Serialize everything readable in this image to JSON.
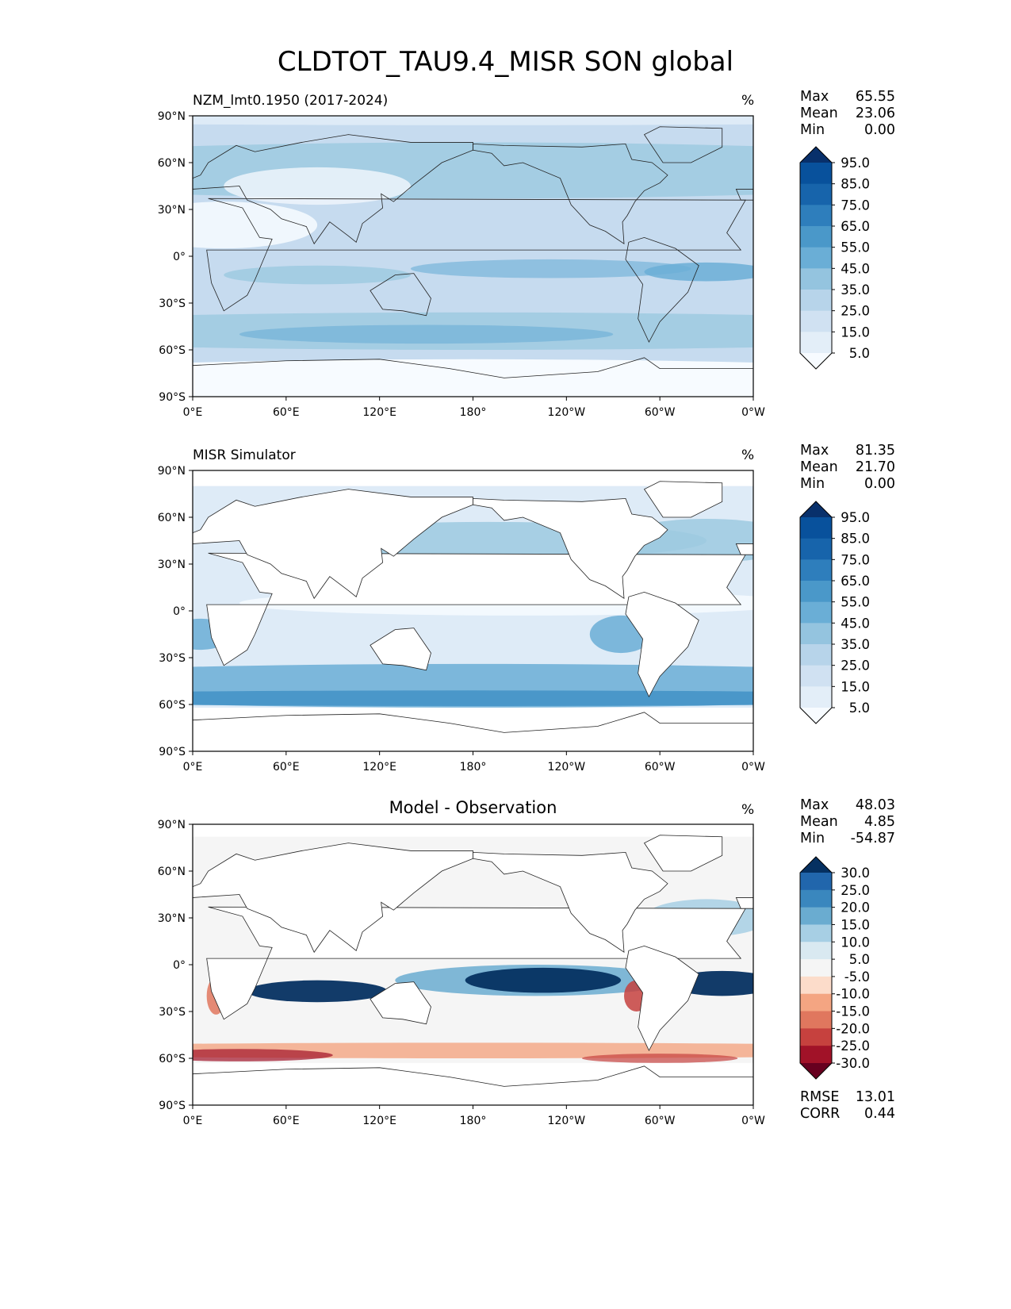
{
  "figure_title": "CLDTOT_TAU9.4_MISR SON global",
  "chart_data": [
    {
      "type": "heatmap",
      "title": "NZM_lmt0.1950 (2017-2024)",
      "units": "%",
      "stats": {
        "max": "65.55",
        "mean": "23.06",
        "min": "0.00"
      },
      "xticks": [
        "0°E",
        "60°E",
        "120°E",
        "180°",
        "120°W",
        "60°W",
        "0°W"
      ],
      "yticks": [
        "90°N",
        "60°N",
        "30°N",
        "0°",
        "30°S",
        "60°S",
        "90°S"
      ],
      "colorbar": {
        "labels": [
          "95.0",
          "85.0",
          "75.0",
          "65.0",
          "55.0",
          "45.0",
          "35.0",
          "25.0",
          "15.0",
          "5.0"
        ],
        "colors": [
          "#08306b",
          "#08519c",
          "#1764ab",
          "#2e7ebc",
          "#4a98c9",
          "#6aaed6",
          "#94c4df",
          "#b7d4ea",
          "#d0e1f2",
          "#e3eef8",
          "#f7fbff"
        ]
      },
      "field": "blues"
    },
    {
      "type": "heatmap",
      "title": "MISR Simulator",
      "units": "%",
      "stats": {
        "max": "81.35",
        "mean": "21.70",
        "min": "0.00"
      },
      "xticks": [
        "0°E",
        "60°E",
        "120°E",
        "180°",
        "120°W",
        "60°W",
        "0°W"
      ],
      "yticks": [
        "90°N",
        "60°N",
        "30°N",
        "0°",
        "30°S",
        "60°S",
        "90°S"
      ],
      "colorbar": {
        "labels": [
          "95.0",
          "85.0",
          "75.0",
          "65.0",
          "55.0",
          "45.0",
          "35.0",
          "25.0",
          "15.0",
          "5.0"
        ],
        "colors": [
          "#08306b",
          "#08519c",
          "#1764ab",
          "#2e7ebc",
          "#4a98c9",
          "#6aaed6",
          "#94c4df",
          "#b7d4ea",
          "#d0e1f2",
          "#e3eef8",
          "#f7fbff"
        ]
      },
      "field": "blues-ocean"
    },
    {
      "type": "heatmap",
      "title": "Model - Observation",
      "units": "%",
      "stats": {
        "max": "48.03",
        "mean": "4.85",
        "min": "-54.87"
      },
      "extra_stats": {
        "rmse": "13.01",
        "corr": "0.44"
      },
      "xticks": [
        "0°E",
        "60°E",
        "120°E",
        "180°",
        "120°W",
        "60°W",
        "0°W"
      ],
      "yticks": [
        "90°N",
        "60°N",
        "30°N",
        "0°",
        "30°S",
        "60°S",
        "90°S"
      ],
      "colorbar": {
        "labels": [
          "30.0",
          "25.0",
          "20.0",
          "15.0",
          "10.0",
          "5.0",
          "-5.0",
          "-10.0",
          "-15.0",
          "-20.0",
          "-25.0",
          "-30.0"
        ],
        "colors": [
          "#053061",
          "#2166ac",
          "#3a87be",
          "#6aacd0",
          "#a7cfe4",
          "#d9e9f1",
          "#f5f5f5",
          "#fcdcca",
          "#f4a582",
          "#e0775e",
          "#c6413e",
          "#a11228",
          "#67001f"
        ]
      },
      "field": "diff"
    }
  ],
  "labels": {
    "max": "Max",
    "mean": "Mean",
    "min": "Min",
    "rmse": "RMSE",
    "corr": "CORR"
  }
}
